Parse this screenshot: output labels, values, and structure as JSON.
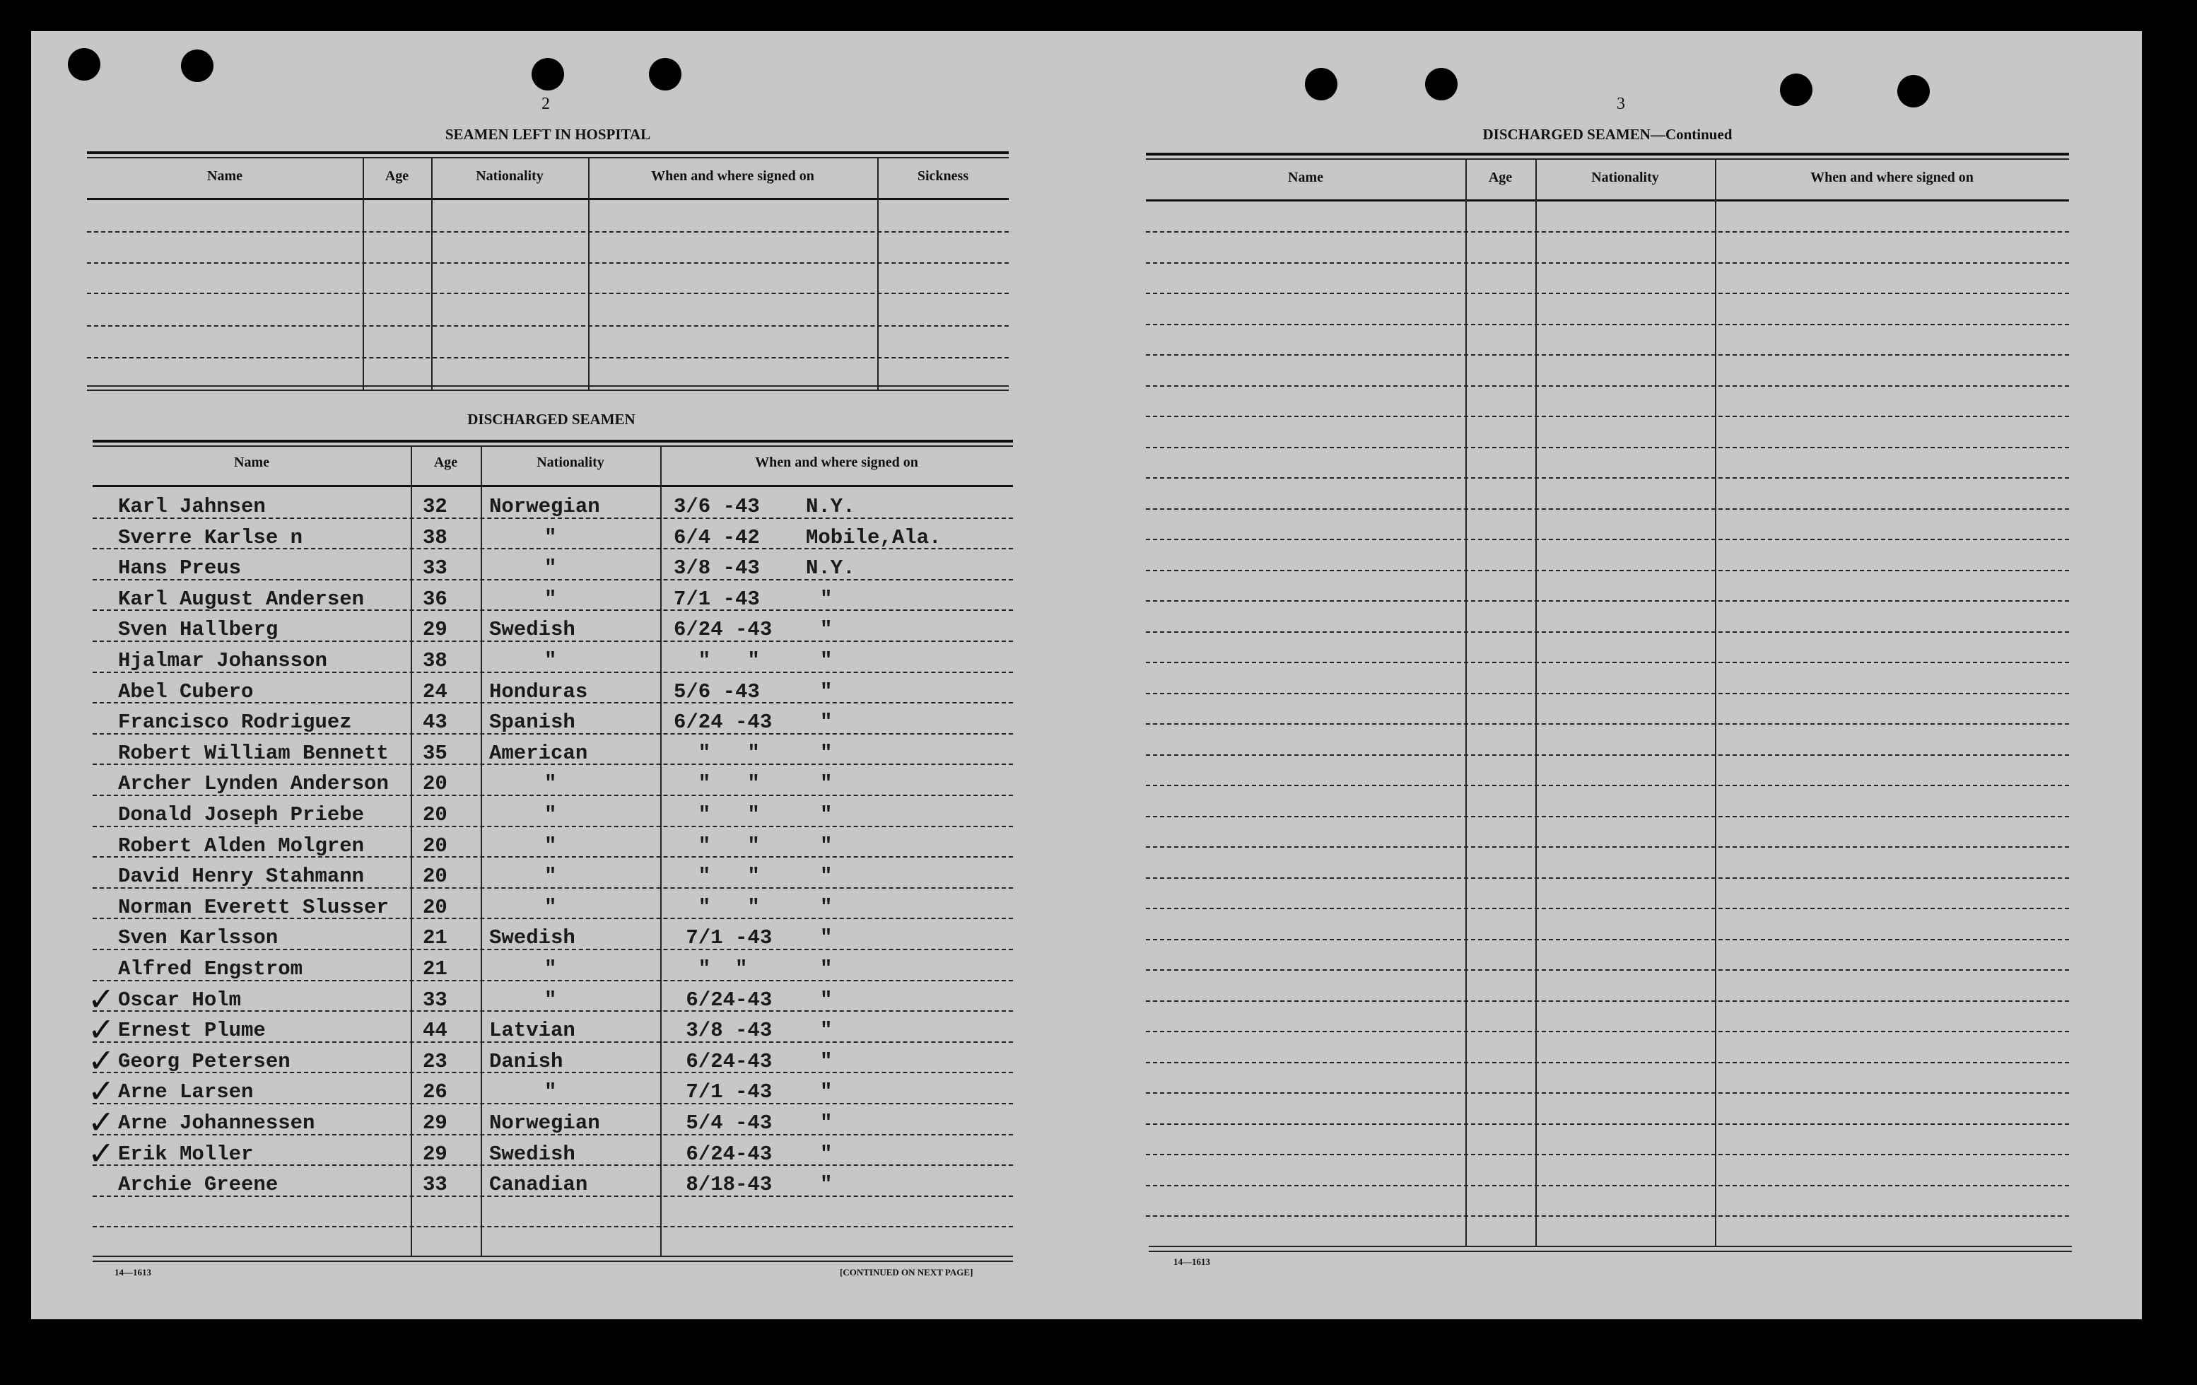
{
  "left_page": {
    "page_number": "2",
    "hospital_section": {
      "title": "SEAMEN LEFT IN HOSPITAL",
      "columns": [
        "Name",
        "Age",
        "Nationality",
        "When and where signed on",
        "Sickness"
      ],
      "rows": []
    },
    "discharged_section": {
      "title": "DISCHARGED SEAMEN",
      "columns": [
        "Name",
        "Age",
        "Nationality",
        "When and where signed on"
      ],
      "rows": [
        {
          "name": "Karl Jahnsen",
          "age": "32",
          "nationality": "Norwegian",
          "date": "3/6 -43",
          "place": "N.Y.",
          "checked": false
        },
        {
          "name": "Sverre Karlse n",
          "age": "38",
          "nationality": "\"",
          "date": "6/4 -42",
          "place": "Mobile,Ala.",
          "checked": false
        },
        {
          "name": "Hans Preus",
          "age": "33",
          "nationality": "\"",
          "date": "3/8 -43",
          "place": "N.Y.",
          "checked": false
        },
        {
          "name": "Karl August Andersen",
          "age": "36",
          "nationality": "\"",
          "date": "7/1 -43",
          "place": "\"",
          "checked": false
        },
        {
          "name": "Sven Hallberg",
          "age": "29",
          "nationality": "Swedish",
          "date": "6/24 -43",
          "place": "\"",
          "checked": false
        },
        {
          "name": "Hjalmar Johansson",
          "age": "38",
          "nationality": "\"",
          "date": "  \"   \"",
          "place": "\"",
          "checked": false
        },
        {
          "name": "Abel Cubero",
          "age": "24",
          "nationality": "Honduras",
          "date": "5/6 -43",
          "place": "\"",
          "checked": false
        },
        {
          "name": "Francisco Rodriguez",
          "age": "43",
          "nationality": "Spanish",
          "date": "6/24 -43",
          "place": "\"",
          "checked": false
        },
        {
          "name": "Robert William Bennett",
          "age": "35",
          "nationality": "American",
          "date": "  \"   \"",
          "place": "\"",
          "checked": false
        },
        {
          "name": "Archer Lynden Anderson",
          "age": "20",
          "nationality": "\"",
          "date": "  \"   \"",
          "place": "\"",
          "checked": false
        },
        {
          "name": "Donald Joseph Priebe",
          "age": "20",
          "nationality": "\"",
          "date": "  \"   \"",
          "place": "\"",
          "checked": false
        },
        {
          "name": "Robert Alden Molgren",
          "age": "20",
          "nationality": "\"",
          "date": "  \"   \"",
          "place": "\"",
          "checked": false
        },
        {
          "name": "David Henry Stahmann",
          "age": "20",
          "nationality": "\"",
          "date": "  \"   \"",
          "place": "\"",
          "checked": false
        },
        {
          "name": "Norman Everett Slusser",
          "age": "20",
          "nationality": "\"",
          "date": "  \"   \"",
          "place": "\"",
          "checked": false
        },
        {
          "name": "Sven Karlsson",
          "age": "21",
          "nationality": "Swedish",
          "date": " 7/1 -43",
          "place": "\"",
          "checked": false
        },
        {
          "name": "Alfred Engstrom",
          "age": "21",
          "nationality": "\"",
          "date": "  \"  \"",
          "place": "\"",
          "checked": false
        },
        {
          "name": "Oscar Holm",
          "age": "33",
          "nationality": "\"",
          "date": " 6/24-43",
          "place": "\"",
          "checked": true
        },
        {
          "name": "Ernest Plume",
          "age": "44",
          "nationality": "Latvian",
          "date": " 3/8 -43",
          "place": "\"",
          "checked": true
        },
        {
          "name": "Georg Petersen",
          "age": "23",
          "nationality": "Danish",
          "date": " 6/24-43",
          "place": "\"",
          "checked": true
        },
        {
          "name": "Arne Larsen",
          "age": "26",
          "nationality": "\"",
          "date": " 7/1 -43",
          "place": "\"",
          "checked": true
        },
        {
          "name": "Arne Johannessen",
          "age": "29",
          "nationality": "Norwegian",
          "date": " 5/4 -43",
          "place": "\"",
          "checked": true
        },
        {
          "name": "Erik Moller",
          "age": "29",
          "nationality": "Swedish",
          "date": " 6/24-43",
          "place": "\"",
          "checked": true
        },
        {
          "name": "Archie Greene",
          "age": "33",
          "nationality": "Canadian",
          "date": " 8/18-43",
          "place": "\"",
          "checked": false
        }
      ]
    },
    "form_number": "14—1613",
    "continued_note": "[CONTINUED ON NEXT PAGE]"
  },
  "right_page": {
    "page_number": "3",
    "title": "DISCHARGED SEAMEN—Continued",
    "columns": [
      "Name",
      "Age",
      "Nationality",
      "When and where signed on"
    ],
    "rows": [],
    "form_number": "14—1613"
  },
  "colors": {
    "paper": "#c7c7c7",
    "background": "#000000",
    "ink": "#1a1a1a"
  },
  "icons": {
    "check_mark": "check-mark-icon",
    "punch_hole": "punch-hole"
  }
}
